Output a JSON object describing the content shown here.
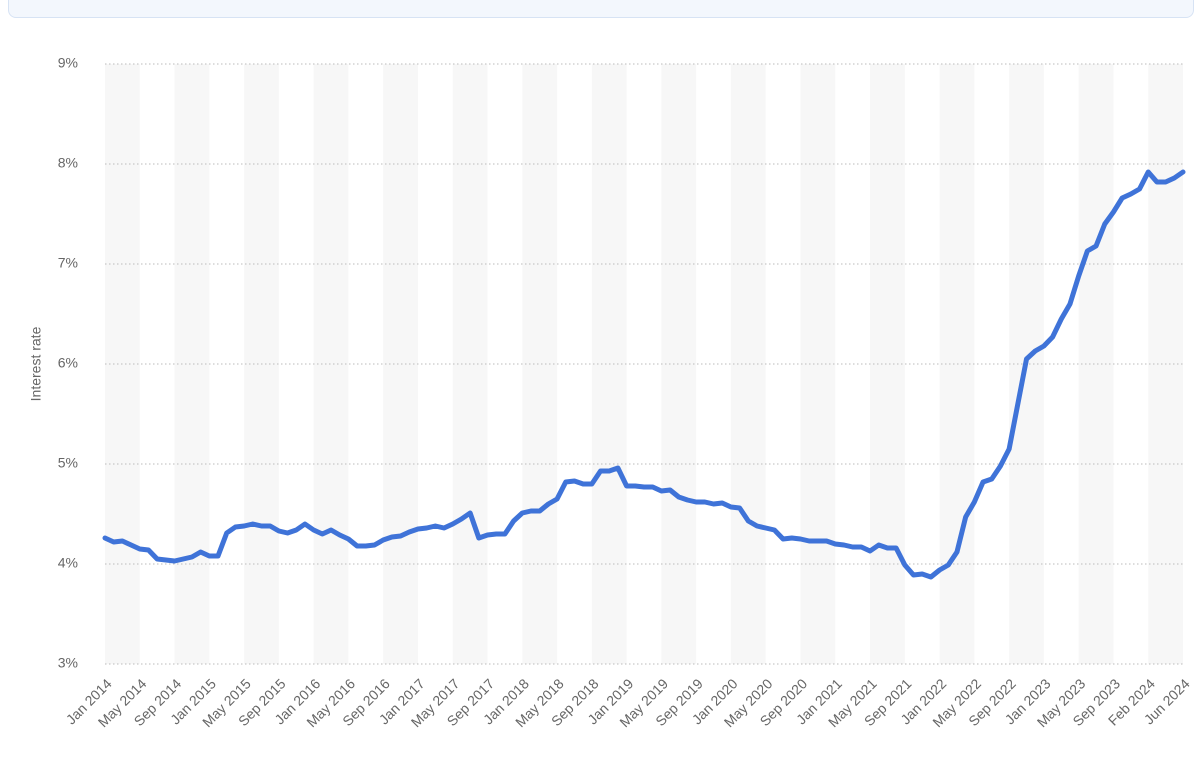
{
  "chart_data": {
    "type": "line",
    "y_label": "Interest rate",
    "categories": [
      "Jan 2014",
      null,
      null,
      null,
      "May 2014",
      null,
      null,
      null,
      "Sep 2014",
      null,
      null,
      null,
      "Jan 2015",
      null,
      null,
      null,
      "May 2015",
      null,
      null,
      null,
      "Sep 2015",
      null,
      null,
      null,
      "Jan 2016",
      null,
      null,
      null,
      "May 2016",
      null,
      null,
      null,
      "Sep 2016",
      null,
      null,
      null,
      "Jan 2017",
      null,
      null,
      null,
      "May 2017",
      null,
      null,
      null,
      "Sep 2017",
      null,
      null,
      null,
      "Jan 2018",
      null,
      null,
      null,
      "May 2018",
      null,
      null,
      null,
      "Sep 2018",
      null,
      null,
      null,
      "Jan 2019",
      null,
      null,
      null,
      "May 2019",
      null,
      null,
      null,
      "Sep 2019",
      null,
      null,
      null,
      "Jan 2020",
      null,
      null,
      null,
      "May 2020",
      null,
      null,
      null,
      "Sep 2020",
      null,
      null,
      null,
      "Jan 2021",
      null,
      null,
      null,
      "May 2021",
      null,
      null,
      null,
      "Sep 2021",
      null,
      null,
      null,
      "Jan 2022",
      null,
      null,
      null,
      "May 2022",
      null,
      null,
      null,
      "Sep 2022",
      null,
      null,
      null,
      "Jan 2023",
      null,
      null,
      null,
      "May 2023",
      null,
      null,
      null,
      "Sep 2023",
      null,
      null,
      null,
      "Feb 2024",
      null,
      null,
      null,
      "Jun 2024"
    ],
    "series": [
      {
        "color": "#3f73d8",
        "values": [
          4.26,
          4.22,
          4.23,
          4.19,
          4.15,
          4.14,
          4.05,
          4.04,
          4.03,
          4.05,
          4.07,
          4.12,
          4.08,
          4.08,
          4.31,
          4.37,
          4.38,
          4.4,
          4.38,
          4.38,
          4.33,
          4.31,
          4.34,
          4.4,
          4.34,
          4.3,
          4.34,
          4.29,
          4.25,
          4.18,
          4.18,
          4.19,
          4.24,
          4.27,
          4.28,
          4.32,
          4.35,
          4.36,
          4.38,
          4.36,
          4.4,
          4.45,
          4.51,
          4.26,
          4.29,
          4.3,
          4.3,
          4.43,
          4.51,
          4.53,
          4.53,
          4.6,
          4.65,
          4.82,
          4.83,
          4.8,
          4.8,
          4.93,
          4.93,
          4.96,
          4.78,
          4.78,
          4.77,
          4.77,
          4.73,
          4.74,
          4.67,
          4.64,
          4.62,
          4.62,
          4.6,
          4.61,
          4.57,
          4.56,
          4.43,
          4.38,
          4.36,
          4.34,
          4.25,
          4.26,
          4.25,
          4.23,
          4.23,
          4.23,
          4.2,
          4.19,
          4.17,
          4.17,
          4.13,
          4.19,
          4.16,
          4.16,
          3.99,
          3.89,
          3.9,
          3.87,
          3.94,
          3.99,
          4.12,
          4.47,
          4.62,
          4.82,
          4.85,
          4.98,
          5.15,
          5.6,
          6.05,
          6.13,
          6.18,
          6.27,
          6.45,
          6.6,
          6.88,
          7.13,
          7.18,
          7.4,
          7.52,
          7.66,
          7.7,
          7.75,
          7.92,
          7.82,
          7.82,
          7.86,
          7.92
        ]
      }
    ],
    "ylim": [
      3,
      9
    ],
    "yticks": [
      {
        "value": 3,
        "label": "3%"
      },
      {
        "value": 4,
        "label": "4%"
      },
      {
        "value": 5,
        "label": "5%"
      },
      {
        "value": 6,
        "label": "6%"
      },
      {
        "value": 7,
        "label": "7%"
      },
      {
        "value": 8,
        "label": "8%"
      },
      {
        "value": 9,
        "label": "9%"
      }
    ],
    "grid": true
  }
}
